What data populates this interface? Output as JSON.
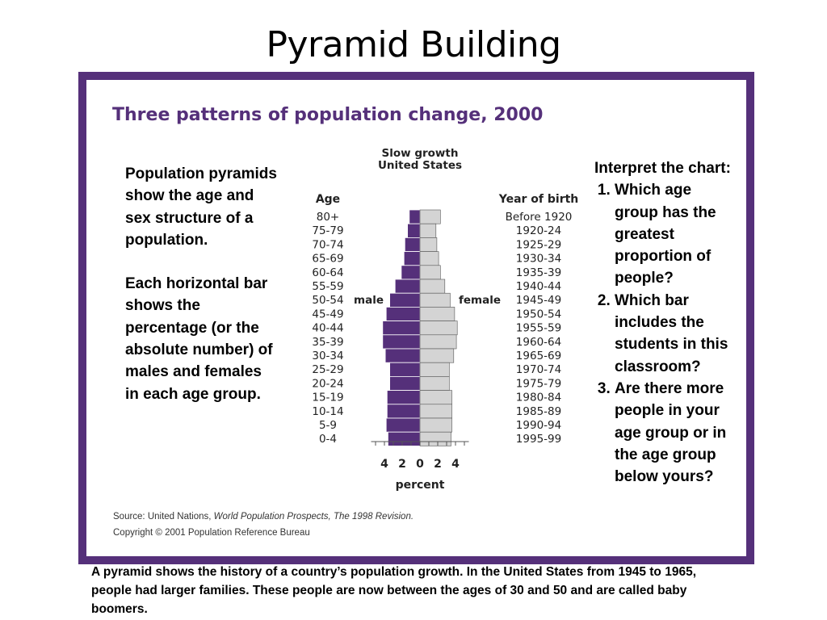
{
  "slide": {
    "title": "Pyramid Building",
    "frame_color": "#55307a",
    "figure_title": "Three patterns of population change, 2000",
    "intro_paragraph_1": "Population pyramids show the age and sex structure of a population.",
    "intro_paragraph_2": "Each horizontal bar shows the percentage (or the absolute number) of males and females in each age group.",
    "questions_intro": "Interpret the chart:",
    "questions": [
      "Which age group has the greatest proportion of people?",
      "Which bar includes the students in this classroom?",
      "Are there more people in your age group or in the age group below yours?"
    ],
    "source_prefix": "Source: United Nations,",
    "source_title": "World Population Prospects, The 1998 Revision.",
    "copyright": "Copyright © 2001 Population Reference Bureau",
    "caption": "A pyramid shows the history of a country’s population growth.  In the United States from 1945 to 1965, people had larger families.  These people are now between the ages of 30 and 50 and are called baby boomers."
  },
  "chart_data": {
    "type": "bar",
    "orientation": "horizontal-pyramid",
    "title": "Slow growth United States",
    "title_lines": [
      "Slow growth",
      "United States"
    ],
    "left_header": "Age",
    "right_header": "Year of birth",
    "xlabel": "percent",
    "male_label": "male",
    "female_label": "female",
    "x_ticks": [
      "4",
      "2",
      "0",
      "2",
      "4"
    ],
    "xlim": [
      -5,
      5
    ],
    "colors": {
      "male": "#55307a",
      "female": "#d4d4d4",
      "outline": "#555555"
    },
    "categories": [
      "80+",
      "75-79",
      "70-74",
      "65-69",
      "60-64",
      "55-59",
      "50-54",
      "45-49",
      "40-44",
      "35-39",
      "30-34",
      "25-29",
      "20-24",
      "15-19",
      "10-14",
      "5-9",
      "0-4"
    ],
    "birth_years": [
      "Before 1920",
      "1920-24",
      "1925-29",
      "1930-34",
      "1935-39",
      "1940-44",
      "1945-49",
      "1950-54",
      "1955-59",
      "1960-64",
      "1965-69",
      "1970-74",
      "1975-79",
      "1980-84",
      "1985-89",
      "1990-94",
      "1995-99"
    ],
    "series": [
      {
        "name": "male",
        "values": [
          1.2,
          1.4,
          1.7,
          1.8,
          2.1,
          2.8,
          3.4,
          3.8,
          4.2,
          4.2,
          3.9,
          3.4,
          3.4,
          3.7,
          3.7,
          3.8,
          3.6
        ]
      },
      {
        "name": "female",
        "values": [
          2.3,
          1.8,
          1.9,
          2.1,
          2.3,
          2.8,
          3.4,
          3.9,
          4.2,
          4.1,
          3.8,
          3.3,
          3.3,
          3.6,
          3.6,
          3.6,
          3.5
        ]
      }
    ]
  }
}
